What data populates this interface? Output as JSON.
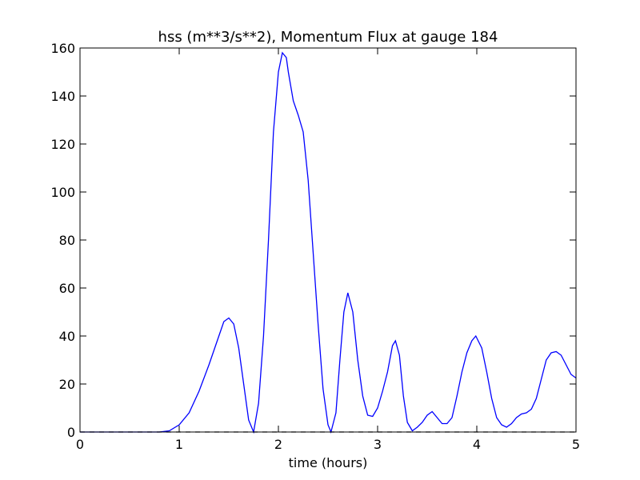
{
  "chart_data": {
    "type": "line",
    "title": "hss (m**3/s**2), Momentum Flux at gauge 184",
    "x_label": "time (hours)",
    "xlim": [
      0,
      5
    ],
    "xticks": [
      0,
      1,
      2,
      3,
      4,
      5
    ],
    "ylim": [
      0,
      160
    ],
    "yticks": [
      0,
      20,
      40,
      60,
      80,
      100,
      120,
      140,
      160
    ],
    "grid": false,
    "series": [
      {
        "color": "#0000ff",
        "linestyle": "solid",
        "x": [
          0,
          0.8,
          0.9,
          1.0,
          1.1,
          1.2,
          1.3,
          1.4,
          1.45,
          1.5,
          1.55,
          1.6,
          1.65,
          1.7,
          1.75,
          1.8,
          1.85,
          1.9,
          1.95,
          2.0,
          2.04,
          2.08,
          2.1,
          2.15,
          2.2,
          2.25,
          2.3,
          2.35,
          2.4,
          2.45,
          2.5,
          2.53,
          2.58,
          2.62,
          2.66,
          2.7,
          2.75,
          2.8,
          2.85,
          2.9,
          2.95,
          3.0,
          3.05,
          3.1,
          3.15,
          3.18,
          3.22,
          3.26,
          3.3,
          3.35,
          3.4,
          3.45,
          3.5,
          3.55,
          3.6,
          3.65,
          3.7,
          3.75,
          3.8,
          3.85,
          3.9,
          3.95,
          3.99,
          4.05,
          4.1,
          4.15,
          4.2,
          4.25,
          4.3,
          4.35,
          4.4,
          4.45,
          4.5,
          4.55,
          4.6,
          4.65,
          4.7,
          4.75,
          4.8,
          4.85,
          4.9,
          4.95,
          5.0
        ],
        "values": [
          0,
          0,
          0.5,
          3,
          8,
          17,
          28,
          40,
          46,
          47.5,
          45,
          35,
          20,
          5,
          0,
          12,
          40,
          80,
          125,
          150,
          158,
          156,
          150,
          138,
          132,
          125,
          105,
          75,
          45,
          18,
          3,
          0,
          8,
          30,
          50,
          58,
          50,
          30,
          15,
          7,
          6.5,
          10,
          17,
          25,
          36,
          38,
          32,
          15,
          4,
          0.5,
          2,
          4,
          7,
          8.5,
          6,
          3.5,
          3.5,
          6,
          15,
          25,
          33,
          38,
          40,
          35,
          25,
          14,
          6,
          3,
          2,
          3.5,
          6,
          7.5,
          8,
          9.5,
          14,
          22,
          30,
          33,
          33.5,
          32,
          28,
          24,
          22.5
        ]
      },
      {
        "color": "#000000",
        "linestyle": "dashed",
        "x": [
          0,
          5
        ],
        "values": [
          0,
          0
        ]
      }
    ]
  }
}
